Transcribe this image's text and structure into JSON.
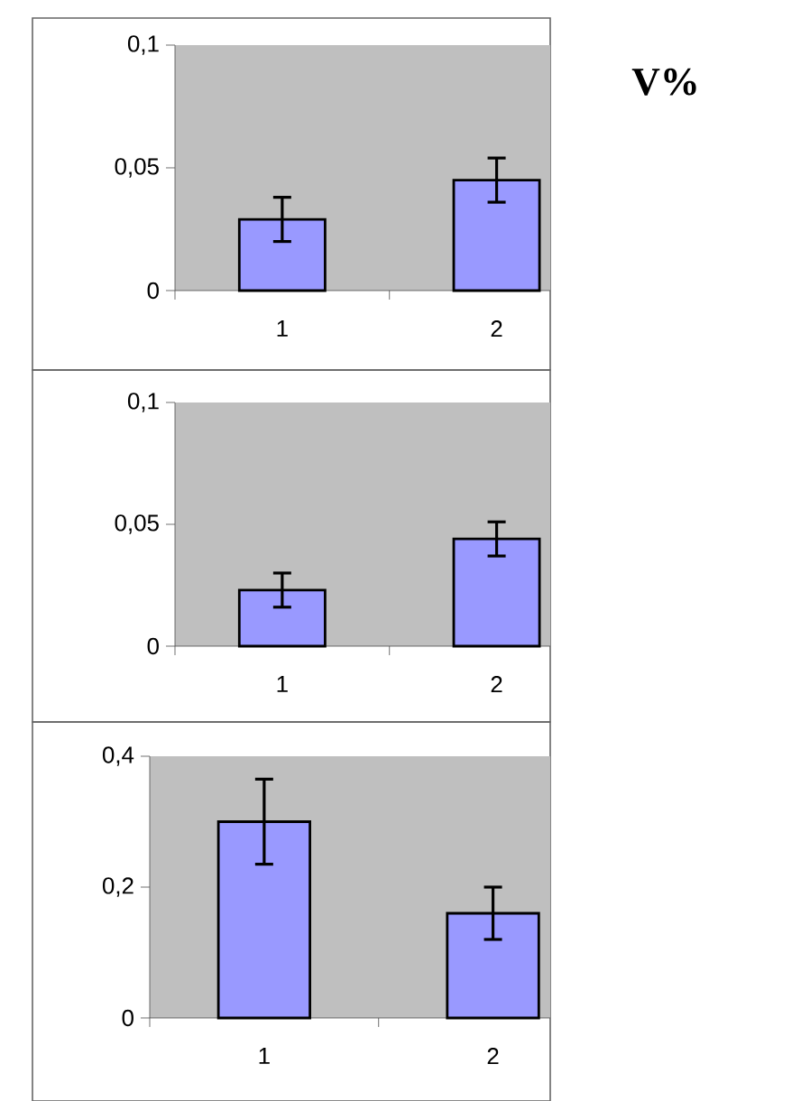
{
  "chart_data": [
    {
      "type": "bar",
      "categories": [
        "1",
        "2"
      ],
      "values": [
        0.029,
        0.045
      ],
      "errors": [
        0.009,
        0.009
      ],
      "color": "#9999ff",
      "ylim": [
        0,
        0.1
      ],
      "yticks": [
        {
          "value": 0,
          "label": "0"
        },
        {
          "value": 0.05,
          "label": "0,05"
        },
        {
          "value": 0.1,
          "label": "0,1"
        }
      ],
      "annotations": [
        "V%"
      ]
    },
    {
      "type": "bar",
      "categories": [
        "1",
        "2"
      ],
      "values": [
        0.023,
        0.044
      ],
      "errors": [
        0.007,
        0.007
      ],
      "color": "#9999ff",
      "ylim": [
        0,
        0.1
      ],
      "yticks": [
        {
          "value": 0,
          "label": "0"
        },
        {
          "value": 0.05,
          "label": "0,05"
        },
        {
          "value": 0.1,
          "label": "0,1"
        }
      ]
    },
    {
      "type": "bar",
      "categories": [
        "1",
        "2"
      ],
      "values": [
        0.3,
        0.16
      ],
      "errors": [
        0.065,
        0.04
      ],
      "color": "#9999ff",
      "ylim": [
        0,
        0.4
      ],
      "yticks": [
        {
          "value": 0,
          "label": "0"
        },
        {
          "value": 0.2,
          "label": "0,2"
        },
        {
          "value": 0.4,
          "label": "0,4"
        }
      ]
    }
  ]
}
